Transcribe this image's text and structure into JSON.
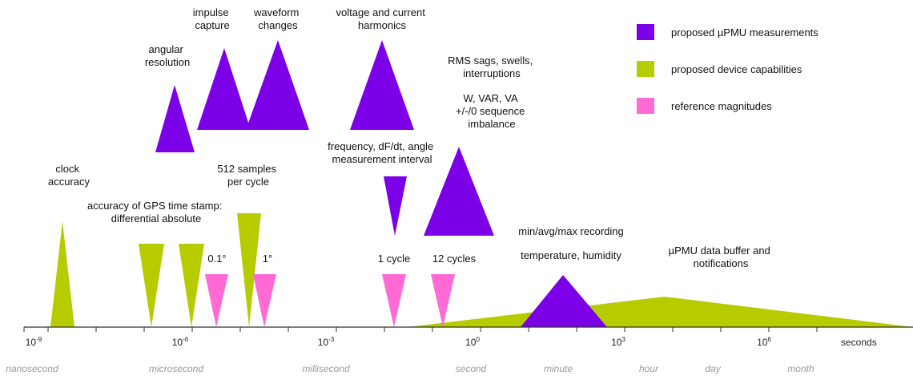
{
  "colors": {
    "purple": "#7b00e8",
    "green": "#b7cc00",
    "pink": "#ff6ad5",
    "axis": "#333333",
    "unit_text": "#9a9a9a"
  },
  "legend": [
    {
      "label": "proposed µPMU measurements",
      "color": "#7b00e8"
    },
    {
      "label": "proposed device capabilities",
      "color": "#b7cc00"
    },
    {
      "label": "reference magnitudes",
      "color": "#ff6ad5"
    }
  ],
  "axis": {
    "ticks": [
      {
        "base": "10",
        "exp": "-9"
      },
      {
        "base": "10",
        "exp": "-6"
      },
      {
        "base": "10",
        "exp": "-3"
      },
      {
        "base": "10",
        "exp": "0"
      },
      {
        "base": "10",
        "exp": "3"
      },
      {
        "base": "10",
        "exp": "6"
      }
    ],
    "unit_label": "seconds",
    "time_units": [
      "nanosecond",
      "microsecond",
      "millisecond",
      "second",
      "minute",
      "hour",
      "day",
      "month"
    ]
  },
  "labels": {
    "impulse": [
      "impulse",
      "capture"
    ],
    "waveform": [
      "waveform",
      "changes"
    ],
    "harmonics": [
      "voltage and current",
      "harmonics"
    ],
    "angular": [
      "angular",
      "resolution"
    ],
    "rms": [
      "RMS sags, swells,",
      "interruptions"
    ],
    "power": [
      "W, VAR, VA",
      "+/-/0 sequence",
      "imbalance"
    ],
    "frequency": [
      "frequency, dF/dt, angle",
      "measurement interval"
    ],
    "clock": [
      "clock",
      "accuracy"
    ],
    "samples": [
      "512 samples",
      "per cycle"
    ],
    "gps": [
      "accuracy of GPS time stamp:",
      "differential  absolute"
    ],
    "deg01": "0.1°",
    "deg1": "1°",
    "cycle1": "1 cycle",
    "cycles12": "12 cycles",
    "minmax": "min/avg/max recording",
    "temperature": "temperature, humidity",
    "buffer": [
      "µPMU data buffer and",
      "notifications"
    ]
  }
}
